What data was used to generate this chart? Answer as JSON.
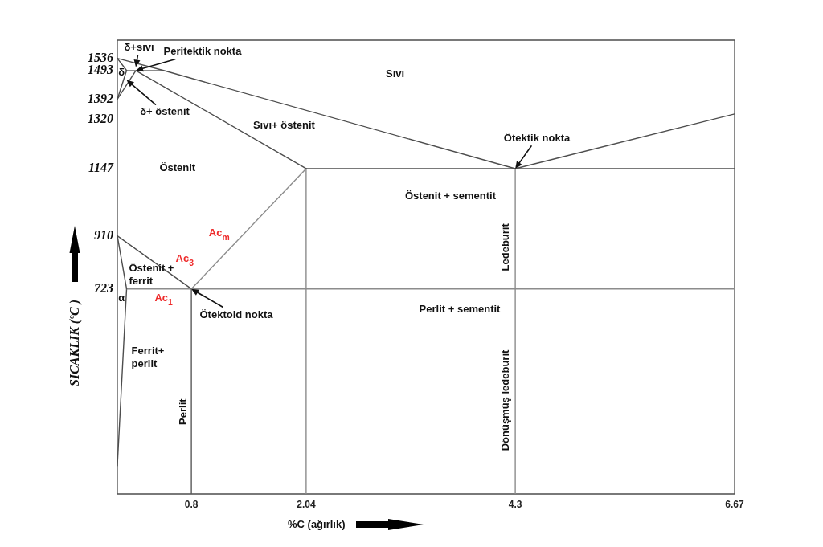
{
  "chart_data": {
    "type": "line",
    "xlabel": "%C (ağırlık)",
    "ylabel": "SICAKLIK (ºC )",
    "xlim": [
      0,
      6.67
    ],
    "xticks": [
      0.8,
      2.04,
      4.3,
      6.67
    ],
    "ylim": [
      0,
      1600
    ],
    "yticks": [
      723,
      910,
      1147,
      1320,
      1392,
      1493,
      1536
    ],
    "series": [
      {
        "color": "#4d4d4d",
        "x": [
          0,
          0.5,
          4.3,
          6.67
        ],
        "values": [
          1536,
          1493,
          1147,
          1340
        ]
      },
      {
        "color": "#4d4d4d",
        "x": [
          0,
          0.1
        ],
        "values": [
          1536,
          1493
        ]
      },
      {
        "color": "#8c8c8c",
        "x": [
          0.1,
          0.5
        ],
        "values": [
          1493,
          1493
        ]
      },
      {
        "color": "#4d4d4d",
        "x": [
          0.2,
          2.04
        ],
        "values": [
          1493,
          1147
        ]
      },
      {
        "color": "#4d4d4d",
        "x": [
          0,
          0.1
        ],
        "values": [
          1392,
          1493
        ]
      },
      {
        "color": "#4d4d4d",
        "x": [
          0,
          0.2
        ],
        "values": [
          1392,
          1493
        ]
      },
      {
        "color": "#4d4d4d",
        "x": [
          2.04,
          6.67
        ],
        "values": [
          1147,
          1147
        ]
      },
      {
        "color": "#8c8c8c",
        "x": [
          0.8,
          2.04
        ],
        "values": [
          723,
          1147
        ]
      },
      {
        "color": "#4d4d4d",
        "x": [
          0,
          0.8
        ],
        "values": [
          910,
          723
        ]
      },
      {
        "color": "#4d4d4d",
        "x": [
          0,
          0.1
        ],
        "values": [
          910,
          723
        ]
      },
      {
        "color": "#8c8c8c",
        "x": [
          0.1,
          6.67
        ],
        "values": [
          723,
          723
        ]
      },
      {
        "color": "#4d4d4d",
        "x": [
          0.1,
          0
        ],
        "values": [
          723,
          100
        ]
      },
      {
        "color": "#5a5a5a",
        "x": [
          0.8,
          0.8
        ],
        "values": [
          723,
          0
        ]
      },
      {
        "color": "#8c8c8c",
        "x": [
          2.04,
          2.04
        ],
        "values": [
          1147,
          0
        ]
      },
      {
        "color": "#8c8c8c",
        "x": [
          4.3,
          4.3
        ],
        "values": [
          1147,
          0
        ]
      }
    ],
    "annotations": [
      "Sıvı",
      {
        "text": "δ+sıvı",
        "x": 0.2,
        "y": 1505
      },
      "δ",
      {
        "text": "Peritektik nokta",
        "x": 0.2,
        "y": 1493
      },
      {
        "text": "δ+ östenit",
        "x": 0.1,
        "y": 1460
      },
      "Sıvı+ östenit",
      {
        "text": "Ötektik nokta",
        "x": 4.3,
        "y": 1147
      },
      "Östenit",
      "Östenit + sementit",
      "Ledeburit",
      "Ac$_{m}$",
      "Östenit +\nferrit",
      "Ac$_{3}$",
      "Ac$_{1}$",
      "α",
      {
        "text": "Ötektoid nokta",
        "x": 0.8,
        "y": 723
      },
      "Ferrit+\nperlit",
      "Perlit",
      "Perlit + sementit",
      "Dönüşmüş ledeburit"
    ]
  }
}
